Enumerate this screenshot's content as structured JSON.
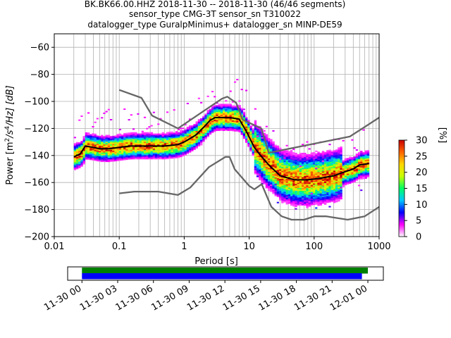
{
  "chart_data": [
    {
      "type": "heatmap",
      "title_lines": [
        "BK.BK66.00.HHZ   2018-11-30 -- 2018-11-30  (46/46 segments)",
        "sensor_type CMG-3T sensor_sn T310022",
        "datalogger_type GuralpMinimus+ datalogger_sn MINP-DE59"
      ],
      "xlabel": "Period [s]",
      "ylabel_parts": {
        "pre": "Power [m",
        "sup1": "2",
        "mid": "/s",
        "sup2": "4",
        "post": "/Hz] [dB]"
      },
      "x_scale": "log",
      "xlim": [
        0.01,
        1000
      ],
      "ylim": [
        -200,
        -50
      ],
      "grid": true,
      "x_ticks": [
        0.01,
        0.1,
        1,
        10,
        100,
        1000
      ],
      "x_tick_labels": [
        "0.01",
        "0.1",
        "1",
        "10",
        "100",
        "1000"
      ],
      "y_ticks": [
        -60,
        -80,
        -100,
        -120,
        -140,
        -160,
        -180,
        -200
      ],
      "y_tick_labels": [
        "−60",
        "−80",
        "−100",
        "−120",
        "−140",
        "−160",
        "−180",
        "−200"
      ],
      "colorbar": {
        "label": "[%]",
        "range": [
          0,
          30
        ],
        "ticks": [
          0,
          5,
          10,
          15,
          20,
          25,
          30
        ],
        "tick_labels": [
          "0",
          "5",
          "10",
          "15",
          "20",
          "25",
          "30"
        ],
        "colors": [
          "#ffffff",
          "#ff00ff",
          "#0000ff",
          "#00c8ff",
          "#00ff64",
          "#c8ff00",
          "#ffd700",
          "#ff6400",
          "#c80000"
        ]
      },
      "series": [
        {
          "role": "mean",
          "color": "#000000",
          "x": [
            0.02,
            0.025,
            0.03,
            0.04,
            0.05,
            0.07,
            0.1,
            0.15,
            0.2,
            0.3,
            0.5,
            0.8,
            1,
            1.5,
            2,
            2.5,
            3,
            4,
            5,
            7,
            9,
            12,
            15,
            20,
            30,
            50,
            80,
            120,
            200,
            300,
            400,
            500,
            700
          ],
          "y": [
            -141,
            -139,
            -133,
            -134,
            -135,
            -135,
            -134,
            -133,
            -133,
            -133,
            -133,
            -132,
            -130,
            -125,
            -119,
            -114,
            -112,
            -112,
            -112,
            -113,
            -122,
            -134,
            -140,
            -147,
            -155,
            -158,
            -158,
            -157,
            -155,
            -152,
            -150,
            -147,
            -146
          ]
        },
        {
          "role": "noise-model-high",
          "color": "#666666",
          "x": [
            0.1,
            0.22,
            0.32,
            0.8,
            3.8,
            4.6,
            6.3,
            7.9,
            15.4,
            20,
            354.8,
            1000
          ],
          "y": [
            -91.5,
            -97.4,
            -110.5,
            -120,
            -98,
            -96.5,
            -101,
            -113.5,
            -120,
            -138,
            -126,
            -112
          ]
        },
        {
          "role": "noise-model-low",
          "color": "#666666",
          "x": [
            0.1,
            0.17,
            0.4,
            0.8,
            1.24,
            2.4,
            4.3,
            5,
            6,
            10,
            12,
            15.6,
            21.9,
            31.6,
            45,
            70,
            101,
            154,
            328,
            600,
            1000
          ],
          "y": [
            -168,
            -166.7,
            -166.7,
            -169.2,
            -163.7,
            -148.6,
            -141.1,
            -141.1,
            -150.2,
            -162.5,
            -165,
            -161.2,
            -177.9,
            -185,
            -187.5,
            -187.5,
            -185,
            -185,
            -187.5,
            -185,
            -178
          ]
        }
      ]
    },
    {
      "type": "timeline",
      "x_tick_labels": [
        "11-30 00",
        "11-30 03",
        "11-30 06",
        "11-30 09",
        "11-30 12",
        "11-30 15",
        "11-30 18",
        "11-30 21",
        "12-01 00"
      ],
      "range_hours": [
        -1.2,
        25.3
      ],
      "bars": [
        {
          "name": "data coverage",
          "color": "#008000",
          "start_hour": 0,
          "end_hour": 24.0
        },
        {
          "name": "PSD coverage",
          "color": "#0000ff",
          "start_hour": 0,
          "end_hour": 23.5
        }
      ]
    }
  ]
}
